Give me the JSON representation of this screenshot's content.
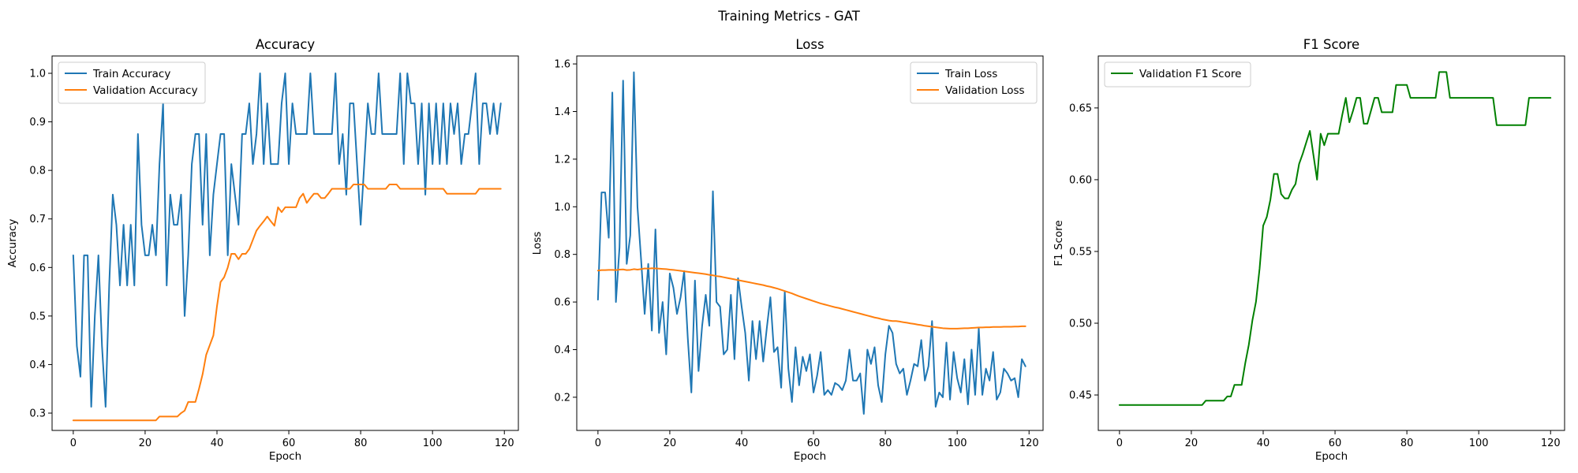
{
  "figure": {
    "title": "Training Metrics - GAT"
  },
  "chart_data": [
    {
      "type": "line",
      "title": "Accuracy",
      "xlabel": "Epoch",
      "ylabel": "Accuracy",
      "xlim": [
        -5.9,
        123.9
      ],
      "ylim": [
        0.2643,
        1.0357
      ],
      "xticks": [
        0,
        20,
        40,
        60,
        80,
        100,
        120
      ],
      "xtick_labels": [
        "0",
        "20",
        "40",
        "60",
        "80",
        "100",
        "120"
      ],
      "yticks": [
        0.3,
        0.4,
        0.5,
        0.6,
        0.7,
        0.8,
        0.9,
        1.0
      ],
      "ytick_labels": [
        "0.3",
        "0.4",
        "0.5",
        "0.6",
        "0.7",
        "0.8",
        "0.9",
        "1.0"
      ],
      "legend_position": "upper-left",
      "series": [
        {
          "name": "Train Accuracy",
          "color": "#1f77b4",
          "values": [
            0.625,
            0.438,
            0.375,
            0.625,
            0.625,
            0.313,
            0.5,
            0.625,
            0.438,
            0.313,
            0.563,
            0.75,
            0.688,
            0.563,
            0.688,
            0.563,
            0.688,
            0.563,
            0.875,
            0.688,
            0.625,
            0.625,
            0.688,
            0.625,
            0.813,
            0.938,
            0.563,
            0.75,
            0.688,
            0.688,
            0.75,
            0.5,
            0.625,
            0.813,
            0.875,
            0.875,
            0.688,
            0.875,
            0.625,
            0.75,
            0.813,
            0.875,
            0.875,
            0.625,
            0.813,
            0.75,
            0.688,
            0.875,
            0.875,
            0.938,
            0.813,
            0.875,
            1.0,
            0.813,
            0.938,
            0.813,
            0.813,
            0.813,
            0.938,
            1.0,
            0.813,
            0.938,
            0.875,
            0.875,
            0.875,
            0.875,
            1.0,
            0.875,
            0.875,
            0.875,
            0.875,
            0.875,
            0.875,
            1.0,
            0.813,
            0.875,
            0.75,
            0.938,
            0.938,
            0.813,
            0.688,
            0.813,
            0.938,
            0.875,
            0.875,
            1.0,
            0.875,
            0.875,
            0.875,
            0.875,
            0.875,
            1.0,
            0.813,
            1.0,
            0.938,
            0.938,
            0.813,
            0.938,
            0.75,
            0.938,
            0.813,
            0.938,
            0.813,
            0.938,
            0.813,
            0.938,
            0.875,
            0.938,
            0.813,
            0.875,
            0.875,
            0.938,
            1.0,
            0.813,
            0.938,
            0.938,
            0.875,
            0.938,
            0.875,
            0.938
          ]
        },
        {
          "name": "Validation Accuracy",
          "color": "#ff7f0e",
          "values": [
            0.285,
            0.285,
            0.285,
            0.285,
            0.285,
            0.285,
            0.285,
            0.285,
            0.285,
            0.285,
            0.285,
            0.285,
            0.285,
            0.285,
            0.285,
            0.285,
            0.285,
            0.285,
            0.285,
            0.285,
            0.285,
            0.285,
            0.285,
            0.285,
            0.293,
            0.293,
            0.293,
            0.293,
            0.293,
            0.293,
            0.3,
            0.305,
            0.323,
            0.323,
            0.323,
            0.35,
            0.38,
            0.42,
            0.44,
            0.46,
            0.52,
            0.57,
            0.58,
            0.6,
            0.628,
            0.628,
            0.617,
            0.628,
            0.628,
            0.638,
            0.657,
            0.676,
            0.686,
            0.695,
            0.705,
            0.695,
            0.686,
            0.724,
            0.714,
            0.724,
            0.724,
            0.724,
            0.724,
            0.743,
            0.752,
            0.733,
            0.743,
            0.752,
            0.752,
            0.743,
            0.743,
            0.752,
            0.762,
            0.762,
            0.762,
            0.762,
            0.762,
            0.762,
            0.771,
            0.771,
            0.771,
            0.771,
            0.762,
            0.762,
            0.762,
            0.762,
            0.762,
            0.762,
            0.771,
            0.771,
            0.771,
            0.762,
            0.762,
            0.762,
            0.762,
            0.762,
            0.762,
            0.762,
            0.762,
            0.762,
            0.762,
            0.762,
            0.762,
            0.762,
            0.752,
            0.752,
            0.752,
            0.752,
            0.752,
            0.752,
            0.752,
            0.752,
            0.752,
            0.762,
            0.762,
            0.762,
            0.762,
            0.762,
            0.762,
            0.762
          ]
        }
      ]
    },
    {
      "type": "line",
      "title": "Loss",
      "xlabel": "Epoch",
      "ylabel": "Loss",
      "xlim": [
        -5.9,
        123.9
      ],
      "ylim": [
        0.0606,
        1.6334
      ],
      "xticks": [
        0,
        20,
        40,
        60,
        80,
        100,
        120
      ],
      "xtick_labels": [
        "0",
        "20",
        "40",
        "60",
        "80",
        "100",
        "120"
      ],
      "yticks": [
        0.2,
        0.4,
        0.6,
        0.8,
        1.0,
        1.2,
        1.4,
        1.6
      ],
      "ytick_labels": [
        "0.2",
        "0.4",
        "0.6",
        "0.8",
        "1.0",
        "1.2",
        "1.4",
        "1.6"
      ],
      "legend_position": "upper-right",
      "series": [
        {
          "name": "Train Loss",
          "color": "#1f77b4",
          "values": [
            0.61,
            1.06,
            1.06,
            0.87,
            1.48,
            0.6,
            0.83,
            1.53,
            0.76,
            0.88,
            1.565,
            1.0,
            0.78,
            0.55,
            0.76,
            0.48,
            0.905,
            0.47,
            0.6,
            0.38,
            0.72,
            0.66,
            0.55,
            0.62,
            0.73,
            0.45,
            0.22,
            0.69,
            0.31,
            0.5,
            0.63,
            0.5,
            1.065,
            0.6,
            0.58,
            0.38,
            0.4,
            0.63,
            0.36,
            0.7,
            0.58,
            0.47,
            0.27,
            0.52,
            0.36,
            0.52,
            0.35,
            0.49,
            0.62,
            0.39,
            0.41,
            0.24,
            0.645,
            0.32,
            0.18,
            0.41,
            0.25,
            0.37,
            0.31,
            0.38,
            0.22,
            0.29,
            0.39,
            0.21,
            0.23,
            0.21,
            0.26,
            0.25,
            0.23,
            0.27,
            0.4,
            0.27,
            0.27,
            0.3,
            0.13,
            0.4,
            0.34,
            0.41,
            0.25,
            0.18,
            0.38,
            0.5,
            0.47,
            0.34,
            0.3,
            0.32,
            0.21,
            0.27,
            0.34,
            0.33,
            0.44,
            0.27,
            0.33,
            0.52,
            0.16,
            0.22,
            0.2,
            0.43,
            0.19,
            0.39,
            0.28,
            0.22,
            0.36,
            0.17,
            0.4,
            0.21,
            0.49,
            0.21,
            0.32,
            0.27,
            0.39,
            0.19,
            0.22,
            0.32,
            0.3,
            0.27,
            0.28,
            0.2,
            0.36,
            0.33
          ]
        },
        {
          "name": "Validation Loss",
          "color": "#ff7f0e",
          "values": [
            0.732,
            0.734,
            0.734,
            0.735,
            0.735,
            0.734,
            0.736,
            0.737,
            0.734,
            0.735,
            0.738,
            0.736,
            0.738,
            0.741,
            0.74,
            0.742,
            0.741,
            0.74,
            0.739,
            0.738,
            0.736,
            0.735,
            0.733,
            0.731,
            0.729,
            0.727,
            0.725,
            0.723,
            0.721,
            0.719,
            0.717,
            0.714,
            0.712,
            0.709,
            0.707,
            0.704,
            0.701,
            0.698,
            0.695,
            0.692,
            0.689,
            0.686,
            0.683,
            0.68,
            0.677,
            0.674,
            0.671,
            0.667,
            0.664,
            0.66,
            0.656,
            0.651,
            0.646,
            0.641,
            0.636,
            0.63,
            0.624,
            0.619,
            0.614,
            0.609,
            0.604,
            0.599,
            0.594,
            0.59,
            0.586,
            0.582,
            0.578,
            0.575,
            0.571,
            0.567,
            0.563,
            0.559,
            0.555,
            0.551,
            0.547,
            0.543,
            0.539,
            0.535,
            0.532,
            0.528,
            0.525,
            0.522,
            0.52,
            0.52,
            0.518,
            0.515,
            0.513,
            0.51,
            0.508,
            0.505,
            0.503,
            0.5,
            0.498,
            0.496,
            0.494,
            0.492,
            0.49,
            0.489,
            0.488,
            0.488,
            0.488,
            0.489,
            0.49,
            0.49,
            0.491,
            0.492,
            0.493,
            0.493,
            0.494,
            0.494,
            0.495,
            0.495,
            0.495,
            0.496,
            0.496,
            0.496,
            0.497,
            0.497,
            0.498,
            0.498
          ]
        }
      ]
    },
    {
      "type": "line",
      "title": "F1 Score",
      "xlabel": "Epoch",
      "ylabel": "F1 Score",
      "xlim": [
        -5.9,
        123.9
      ],
      "ylim": [
        0.4253,
        0.6862
      ],
      "xticks": [
        0,
        20,
        40,
        60,
        80,
        100,
        120
      ],
      "xtick_labels": [
        "0",
        "20",
        "40",
        "60",
        "80",
        "100",
        "120"
      ],
      "yticks": [
        0.45,
        0.5,
        0.55,
        0.6,
        0.65
      ],
      "ytick_labels": [
        "0.45",
        "0.50",
        "0.55",
        "0.60",
        "0.65"
      ],
      "legend_position": "upper-left",
      "series": [
        {
          "name": "Validation F1 Score",
          "color": "#008000",
          "values": [
            0.443,
            0.443,
            0.443,
            0.443,
            0.443,
            0.443,
            0.443,
            0.443,
            0.443,
            0.443,
            0.443,
            0.443,
            0.443,
            0.443,
            0.443,
            0.443,
            0.443,
            0.443,
            0.443,
            0.443,
            0.443,
            0.443,
            0.443,
            0.443,
            0.446,
            0.446,
            0.446,
            0.446,
            0.446,
            0.446,
            0.449,
            0.449,
            0.457,
            0.457,
            0.457,
            0.472,
            0.485,
            0.502,
            0.515,
            0.538,
            0.568,
            0.574,
            0.586,
            0.604,
            0.604,
            0.59,
            0.587,
            0.587,
            0.593,
            0.597,
            0.611,
            0.618,
            0.626,
            0.634,
            0.617,
            0.6,
            0.632,
            0.624,
            0.632,
            0.632,
            0.632,
            0.632,
            0.645,
            0.657,
            0.64,
            0.648,
            0.657,
            0.657,
            0.639,
            0.639,
            0.648,
            0.657,
            0.657,
            0.647,
            0.647,
            0.647,
            0.647,
            0.666,
            0.666,
            0.666,
            0.666,
            0.657,
            0.657,
            0.657,
            0.657,
            0.657,
            0.657,
            0.657,
            0.657,
            0.675,
            0.675,
            0.675,
            0.657,
            0.657,
            0.657,
            0.657,
            0.657,
            0.657,
            0.657,
            0.657,
            0.657,
            0.657,
            0.657,
            0.657,
            0.657,
            0.638,
            0.638,
            0.638,
            0.638,
            0.638,
            0.638,
            0.638,
            0.638,
            0.638,
            0.657,
            0.657,
            0.657,
            0.657,
            0.657,
            0.657,
            0.657
          ]
        }
      ]
    }
  ]
}
